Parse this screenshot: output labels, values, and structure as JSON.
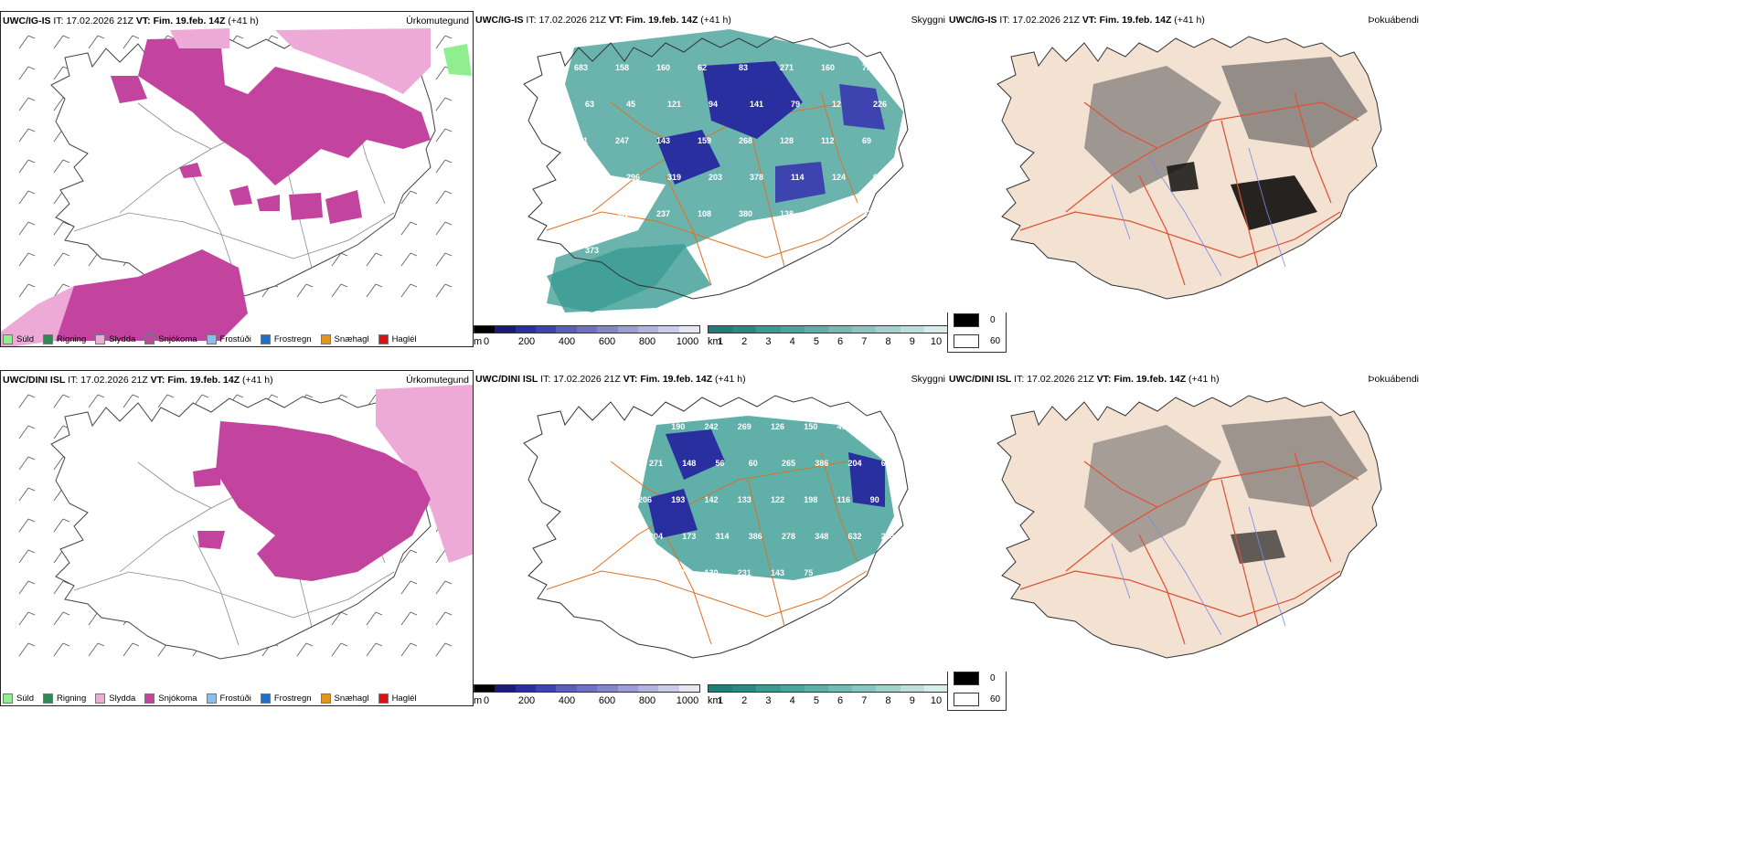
{
  "colors": {
    "precip_snow": "#c2449f",
    "precip_sleet": "#eeaad6",
    "precip_drizzle": "#90ee90",
    "teal": "#3a9b93",
    "teal_dark": "#1f7f78",
    "blue_dark": "#2a2fa0",
    "road_orange": "#e07020",
    "land_peach": "#f3e1d2"
  },
  "rows": [
    {
      "id": "row1",
      "model": "UWC/IG-IS",
      "it_label": "IT:",
      "it_value": "17.02.2026 21Z",
      "vt_label": "VT:",
      "vt_value": "Fim. 19.feb. 14Z",
      "lead": "(+41 h)",
      "cloud_numbers": [
        "683",
        "158",
        "160",
        "62",
        "83",
        "271",
        "160",
        "73",
        "63",
        "45",
        "121",
        "94",
        "141",
        "79",
        "12",
        "226",
        "171",
        "247",
        "143",
        "159",
        "268",
        "128",
        "112",
        "69",
        "185",
        "296",
        "319",
        "203",
        "378",
        "114",
        "124",
        "61",
        "202",
        "300",
        "237",
        "108",
        "380",
        "138",
        "160",
        "22",
        "373"
      ]
    },
    {
      "id": "row2",
      "model": "UWC/DINI ISL",
      "it_label": "IT:",
      "it_value": "17.02.2026 21Z",
      "vt_label": "VT:",
      "vt_value": "Fim. 19.feb. 14Z",
      "lead": "(+41 h)",
      "cloud_numbers": [
        "136",
        "190",
        "242",
        "269",
        "126",
        "150",
        "478",
        "381",
        "271",
        "148",
        "56",
        "60",
        "265",
        "386",
        "204",
        "62",
        "206",
        "193",
        "142",
        "133",
        "122",
        "198",
        "116",
        "90",
        "204",
        "173",
        "314",
        "386",
        "278",
        "348",
        "632",
        "255",
        "188",
        "657",
        "130",
        "231",
        "143",
        "75"
      ]
    }
  ],
  "titles": {
    "precip_type": "Úrkomutegund",
    "visibility": "Skyggni",
    "fog": "Þokuábendi"
  },
  "precip_legend": [
    {
      "label": "Súld",
      "color": "#90ee90"
    },
    {
      "label": "Rigning",
      "color": "#2e8b57"
    },
    {
      "label": "Slydda",
      "color": "#eeaad6"
    },
    {
      "label": "Snjókoma",
      "color": "#c2449f"
    },
    {
      "label": "Frostúði",
      "color": "#87bff0"
    },
    {
      "label": "Frostregn",
      "color": "#1f6fc7"
    },
    {
      "label": "Snæhagl",
      "color": "#e8941a"
    },
    {
      "label": "Haglél",
      "color": "#e01010"
    }
  ],
  "cloud_base_bar": {
    "unit": "m",
    "ticks": [
      "0",
      "200",
      "400",
      "600",
      "800",
      "1000"
    ],
    "colors": [
      "#000000",
      "#1a1a7a",
      "#2a2fa0",
      "#3d44b0",
      "#5a5fbb",
      "#7070c4",
      "#8486cc",
      "#9b9dd5",
      "#b2b4df",
      "#cbcce9",
      "#e6e6f4"
    ]
  },
  "visibility_bar": {
    "unit": "km",
    "ticks": [
      "1",
      "2",
      "3",
      "4",
      "5",
      "6",
      "7",
      "8",
      "9",
      "10"
    ],
    "colors": [
      "#1f7f78",
      "#2a8a83",
      "#3a9b93",
      "#4aa59e",
      "#5cb0a9",
      "#73bbb5",
      "#8ac6c1",
      "#a3d2ce",
      "#bddfdb",
      "#d8ecea"
    ]
  },
  "fog_legend": [
    {
      "value": "0",
      "color": "#000000"
    },
    {
      "value": "60",
      "color": "#ffffff"
    }
  ]
}
